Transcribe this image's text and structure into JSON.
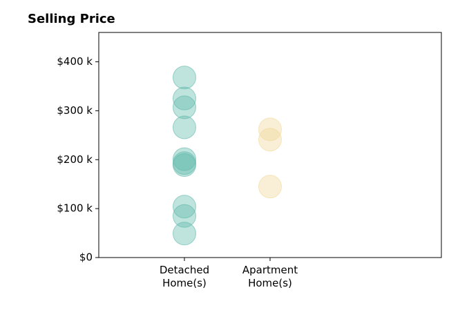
{
  "chart_data": {
    "type": "strip",
    "title": "Selling Price",
    "categories": [
      "Detached\nHome(s)",
      "Apartment\nHome(s)"
    ],
    "values": [
      [
        368000,
        325000,
        307000,
        266000,
        201000,
        193000,
        189000,
        104000,
        85000,
        49000
      ],
      [
        262000,
        241000,
        145000
      ]
    ],
    "colors": [
      "#5fb8ab",
      "#f0d898"
    ],
    "ylim": [
      0,
      460000
    ],
    "yticks": [
      {
        "value": 0,
        "label": "$0"
      },
      {
        "value": 100000,
        "label": "$100 k"
      },
      {
        "value": 200000,
        "label": "$200 k"
      },
      {
        "value": 300000,
        "label": "$300 k"
      },
      {
        "value": 400000,
        "label": "$400 k"
      }
    ]
  }
}
